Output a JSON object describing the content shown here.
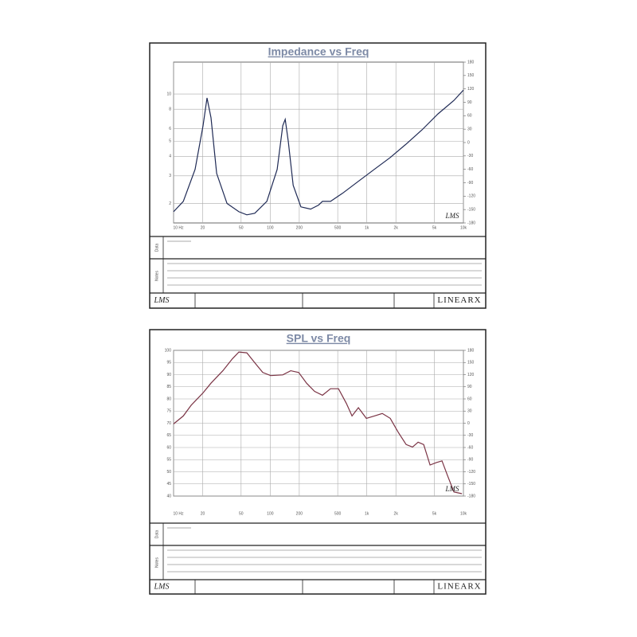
{
  "chart_data": [
    {
      "type": "line",
      "title": "Impedance vs Freq",
      "log_x": true,
      "log_y": true,
      "grid": true,
      "x": [
        10,
        12.6,
        16.7,
        20.2,
        22.2,
        24.4,
        27.9,
        35.7,
        47.4,
        57.3,
        69.3,
        92.2,
        118,
        135,
        143,
        154,
        173,
        208,
        262,
        316,
        348,
        421,
        560,
        818,
        1195,
        1747,
        2553,
        3733,
        5458,
        7980,
        10000
      ],
      "series": [
        {
          "color": "#1f2a55",
          "values": [
            1.77,
            2.06,
            3.3,
            6.27,
            9.44,
            7.05,
            3.11,
            2.0,
            1.77,
            1.69,
            1.73,
            2.06,
            3.3,
            6.27,
            6.89,
            4.96,
            2.61,
            1.9,
            1.84,
            1.95,
            2.06,
            2.06,
            2.32,
            2.77,
            3.3,
            3.93,
            4.79,
            5.91,
            7.47,
            9.11,
            10.6
          ]
        }
      ],
      "xlim": [
        10,
        10000
      ],
      "xticks": [
        {
          "value": 10,
          "label": "10 Hz"
        },
        20,
        50,
        100,
        200,
        500,
        {
          "value": 1000,
          "label": "1k"
        },
        {
          "value": 2000,
          "label": "2k"
        },
        {
          "value": 5000,
          "label": "5k"
        },
        {
          "value": 10000,
          "label": "10k"
        }
      ],
      "ylim": [
        1.5,
        16
      ],
      "yticks": [
        2,
        3,
        4,
        5,
        6,
        8,
        10
      ],
      "y2lim": [
        -180,
        180
      ],
      "y2ticks": [
        -180,
        -150,
        -120,
        -90,
        -60,
        -30,
        0,
        30,
        60,
        90,
        120,
        150,
        180
      ],
      "sections": [
        "Data",
        "Notes"
      ],
      "watermark": "LMS",
      "brand": "LINEARX"
    },
    {
      "type": "line",
      "title": "SPL vs Freq",
      "log_x": true,
      "log_y": false,
      "grid": true,
      "x": [
        10,
        12.6,
        15.2,
        20.2,
        24.4,
        32.4,
        40.7,
        47.4,
        57.3,
        69.3,
        83.8,
        101,
        135,
        163,
        197,
        238,
        288,
        348,
        421,
        509,
        615,
        703,
        818,
        989,
        1195,
        1445,
        1747,
        2113,
        2553,
        2972,
        3396,
        3880,
        4519,
        5248,
        5998,
        6855,
        7980,
        9645
      ],
      "series": [
        {
          "color": "#7a3344",
          "values": [
            69.7,
            73.0,
            77.4,
            82.5,
            86.5,
            91.6,
            96.6,
            99.3,
            99.0,
            94.9,
            90.9,
            89.6,
            89.9,
            91.6,
            90.9,
            86.5,
            83.1,
            81.5,
            84.2,
            84.2,
            78.1,
            73.0,
            76.4,
            72.0,
            73.0,
            74.0,
            72.0,
            66.3,
            61.2,
            60.2,
            62.2,
            61.2,
            52.8,
            53.8,
            54.5,
            48.4,
            41.7,
            41.0
          ]
        }
      ],
      "xlim": [
        10,
        10000
      ],
      "xticks": [
        {
          "value": 10,
          "label": "10 Hz"
        },
        20,
        50,
        100,
        200,
        500,
        {
          "value": 1000,
          "label": "1k"
        },
        {
          "value": 2000,
          "label": "2k"
        },
        {
          "value": 5000,
          "label": "5k"
        },
        {
          "value": 10000,
          "label": "10k"
        }
      ],
      "ylim": [
        40,
        100
      ],
      "yticks": [
        40,
        45,
        50,
        55,
        60,
        65,
        70,
        75,
        80,
        85,
        90,
        95,
        100
      ],
      "y2lim": [
        -180,
        180
      ],
      "y2ticks": [
        -180,
        -150,
        -120,
        -90,
        -60,
        -30,
        0,
        30,
        60,
        90,
        120,
        150,
        180
      ],
      "sections": [
        "Data",
        "Notes"
      ],
      "watermark": "LMS",
      "brand": "LINEARX"
    }
  ]
}
